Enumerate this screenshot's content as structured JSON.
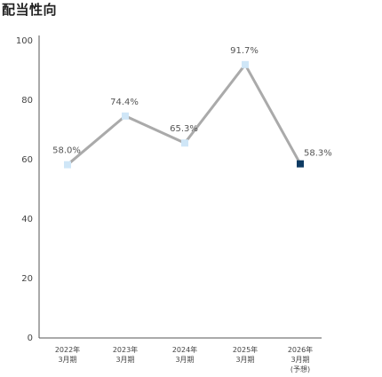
{
  "chart_data": {
    "type": "line",
    "title": "配当性向",
    "categories": [
      [
        "2022年",
        "3月期"
      ],
      [
        "2023年",
        "3月期"
      ],
      [
        "2024年",
        "3月期"
      ],
      [
        "2025年",
        "3月期"
      ],
      [
        "2026年",
        "3月期",
        "(予想)"
      ]
    ],
    "series": [
      {
        "values": [
          58.0,
          74.4,
          65.3,
          91.7,
          58.3
        ]
      }
    ],
    "value_labels": [
      "58.0%",
      "74.4%",
      "65.3%",
      "91.7%",
      "58.3%"
    ],
    "y_ticks": [
      "0",
      "20",
      "40",
      "60",
      "80",
      "100"
    ],
    "ylim": [
      0,
      100
    ],
    "grid": false,
    "colors": {
      "line": "#aaaaaa",
      "marker": "#cfe6f7",
      "marker_forecast": "#0e3b63",
      "axis": "#555555"
    }
  }
}
